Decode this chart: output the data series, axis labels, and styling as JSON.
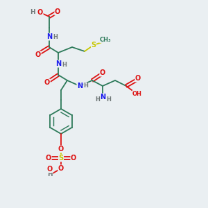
{
  "bg_color": "#eaeff2",
  "C": "#2d7a5a",
  "N": "#1a1aee",
  "O": "#dd1111",
  "S": "#c8c800",
  "H": "#707878",
  "bond_color": "#2d7a5a",
  "fs": 7.0,
  "lw": 1.3
}
